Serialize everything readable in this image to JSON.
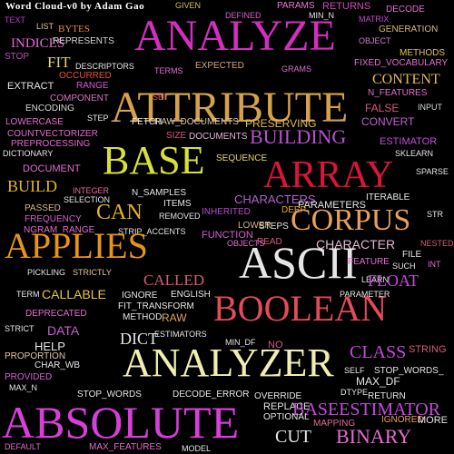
{
  "title": "Word Cloud-v0 by Adam Gao",
  "words": [
    {
      "text": "GIVEN",
      "color": "#d6c44a"
    },
    {
      "text": "DEFINED",
      "color": "#d35fd0"
    },
    {
      "text": "PARAMS",
      "color": "#e67ad6"
    },
    {
      "text": "RETURNS",
      "color": "#d24bb5"
    },
    {
      "text": "MIN_N",
      "color": "#e6e6e6"
    },
    {
      "text": "DECODE",
      "color": "#e66bd2"
    },
    {
      "text": "TEXT",
      "color": "#b93ad0"
    },
    {
      "text": "LIST",
      "color": "#e6c3a3"
    },
    {
      "text": "BYTES",
      "color": "#e28a3a"
    },
    {
      "text": "ANALYZE",
      "color": "#d12fbe"
    },
    {
      "text": "MATRIX",
      "color": "#c44bd8"
    },
    {
      "text": "INDICES",
      "color": "#e46bd2"
    },
    {
      "text": "REPRESENTS",
      "color": "#d8d8d8"
    },
    {
      "text": "GENERATION",
      "color": "#d6b87a"
    },
    {
      "text": "OBJECT",
      "color": "#d27bd2"
    },
    {
      "text": "STOP",
      "color": "#b94fc0"
    },
    {
      "text": "FIT",
      "color": "#e8d46a"
    },
    {
      "text": "DESCRIPTORS",
      "color": "#e6e6e6"
    },
    {
      "text": "TERMS",
      "color": "#e46bd2"
    },
    {
      "text": "EXPECTED",
      "color": "#d6a57a"
    },
    {
      "text": "GRAMS",
      "color": "#d86fd2"
    },
    {
      "text": "METHODS",
      "color": "#e6c34a"
    },
    {
      "text": "OCCURRED",
      "color": "#e84f3a"
    },
    {
      "text": "FIXED_VOCABULARY",
      "color": "#e66bd2"
    },
    {
      "text": "EXTRACT",
      "color": "#e6e6e6"
    },
    {
      "text": "RANGE",
      "color": "#d85ad2"
    },
    {
      "text": "ATTRIBUTE",
      "color": "#d6a14a"
    },
    {
      "text": "CONTENT",
      "color": "#e6b95a"
    },
    {
      "text": "COMPONENT",
      "color": "#d874c8"
    },
    {
      "text": "SET",
      "color": "#e24c7a"
    },
    {
      "text": "N_FEATURES",
      "color": "#e66bd2"
    },
    {
      "text": "ENCODING",
      "color": "#d8d8d8"
    },
    {
      "text": "INPUT",
      "color": "#d8d8d8"
    },
    {
      "text": "FALSE",
      "color": "#d65a7a"
    },
    {
      "text": "LOWERCASE",
      "color": "#e66bd2"
    },
    {
      "text": "STEP",
      "color": "#e6e6e6"
    },
    {
      "text": "FETCH",
      "color": "#e6e6e6"
    },
    {
      "text": "RAW_DOCUMENTS",
      "color": "#d6c3a3"
    },
    {
      "text": "PRESERVING",
      "color": "#e6b95a"
    },
    {
      "text": "CONVERT",
      "color": "#c75fd2"
    },
    {
      "text": "COUNTVECTORIZER",
      "color": "#e66bd2"
    },
    {
      "text": "SIZE",
      "color": "#d65a7a"
    },
    {
      "text": "DOCUMENTS",
      "color": "#e6b6d2"
    },
    {
      "text": "BUILDING",
      "color": "#b94fd2"
    },
    {
      "text": "PREPROCESSING",
      "color": "#e66bd2"
    },
    {
      "text": "ESTIMATOR",
      "color": "#c44bd8"
    },
    {
      "text": "DICTIONARY",
      "color": "#e6e6e6"
    },
    {
      "text": "BASE",
      "color": "#d8e03a"
    },
    {
      "text": "SEQUENCE",
      "color": "#e6d66a"
    },
    {
      "text": "SKLEARN",
      "color": "#e6e6e6"
    },
    {
      "text": "DOCUMENT",
      "color": "#e46bd2"
    },
    {
      "text": "ARRAY",
      "color": "#d8153a"
    },
    {
      "text": "SPARSE",
      "color": "#e6e6e6"
    },
    {
      "text": "BUILD",
      "color": "#e6b42a"
    },
    {
      "text": "INTEGER",
      "color": "#e66b9a"
    },
    {
      "text": "N_SAMPLES",
      "color": "#e6e6e6"
    },
    {
      "text": "SELECTION",
      "color": "#e6e6e6"
    },
    {
      "text": "CHARACTERS",
      "color": "#b65fd2"
    },
    {
      "text": "PASSED",
      "color": "#d6b87a"
    },
    {
      "text": "ITEMS",
      "color": "#e6e6e6"
    },
    {
      "text": "PARAMETERS",
      "color": "#e6e6e6"
    },
    {
      "text": "ITERABLE",
      "color": "#e6e6e6"
    },
    {
      "text": "CAN",
      "color": "#e6b42a"
    },
    {
      "text": "REMOVED",
      "color": "#e6e6e6"
    },
    {
      "text": "INHERITED",
      "color": "#b54ad2"
    },
    {
      "text": "DEEP",
      "color": "#e6a82a"
    },
    {
      "text": "FREQUENCY",
      "color": "#d65fd2"
    },
    {
      "text": "CORPUS",
      "color": "#e6a05a"
    },
    {
      "text": "STR",
      "color": "#e6e6e6"
    },
    {
      "text": "NGRAM_RANGE",
      "color": "#e66bd2"
    },
    {
      "text": "STRIP_ACCENTS",
      "color": "#e6e6e6"
    },
    {
      "text": "LOWER",
      "color": "#d6b87a"
    },
    {
      "text": "STEPS",
      "color": "#e6e6e6"
    },
    {
      "text": "APPLIES",
      "color": "#e6931a"
    },
    {
      "text": "FUNCTION",
      "color": "#d65fd2"
    },
    {
      "text": "OBJECTS",
      "color": "#e66bd2"
    },
    {
      "text": "READ",
      "color": "#d65a7a"
    },
    {
      "text": "CHARACTER",
      "color": "#e6b6d2"
    },
    {
      "text": "NESTED",
      "color": "#d65a7a"
    },
    {
      "text": "ASCII",
      "color": "#e6e6e6"
    },
    {
      "text": "FILE",
      "color": "#e6e6e6"
    },
    {
      "text": "FEATURE",
      "color": "#e66bd2"
    },
    {
      "text": "SUCH",
      "color": "#e6e6e6"
    },
    {
      "text": "INT",
      "color": "#e66bd2"
    },
    {
      "text": "PICKLING",
      "color": "#e6e6e6"
    },
    {
      "text": "STRICTLY",
      "color": "#e6c3a3"
    },
    {
      "text": "CALLED",
      "color": "#d65a7a"
    },
    {
      "text": "LEARN",
      "color": "#e6e6e6"
    },
    {
      "text": "FLOAT",
      "color": "#c44bd8"
    },
    {
      "text": "TERM",
      "color": "#e6e6e6"
    },
    {
      "text": "CALLABLE",
      "color": "#e6c83a"
    },
    {
      "text": "IGNORE",
      "color": "#e6e6e6"
    },
    {
      "text": "ENGLISH",
      "color": "#e6e6e6"
    },
    {
      "text": "BOOLEAN",
      "color": "#e44b5a"
    },
    {
      "text": "PARAMETER",
      "color": "#e6e6e6"
    },
    {
      "text": "FIT_TRANSFORM",
      "color": "#e6e6e6"
    },
    {
      "text": "DEPRECATED",
      "color": "#e66bd2"
    },
    {
      "text": "METHOD",
      "color": "#e6e6e6"
    },
    {
      "text": "RAW",
      "color": "#e6a05a"
    },
    {
      "text": "STRICT",
      "color": "#e6e6e6"
    },
    {
      "text": "DATA",
      "color": "#c75fd2"
    },
    {
      "text": "DICT",
      "color": "#e6e6e6"
    },
    {
      "text": "ESTIMATORS",
      "color": "#e6e6e6"
    },
    {
      "text": "HELP",
      "color": "#e6e6e6"
    },
    {
      "text": "MIN_DF",
      "color": "#e6e6e6"
    },
    {
      "text": "NO",
      "color": "#d65a7a"
    },
    {
      "text": "CLASS",
      "color": "#c44bd8"
    },
    {
      "text": "STRING",
      "color": "#d65a7a"
    },
    {
      "text": "PROPORTION",
      "color": "#e6c3a3"
    },
    {
      "text": "CHAR_WB",
      "color": "#e6e6e6"
    },
    {
      "text": "ANALYZER",
      "color": "#f0eeb0"
    },
    {
      "text": "SELF",
      "color": "#e6e6e6"
    },
    {
      "text": "STOP_WORDS_",
      "color": "#e6e6e6"
    },
    {
      "text": "MAX_DF",
      "color": "#e6e6e6"
    },
    {
      "text": "PROVIDED",
      "color": "#d65fd2"
    },
    {
      "text": "MAX_N",
      "color": "#e6e6e6"
    },
    {
      "text": "STOP_WORDS",
      "color": "#e6e6e6"
    },
    {
      "text": "DECODE_ERROR",
      "color": "#e6e6e6"
    },
    {
      "text": "OVERRIDE",
      "color": "#e6e6e6"
    },
    {
      "text": "DTYPE",
      "color": "#e6e6e6"
    },
    {
      "text": "RETURN",
      "color": "#e6e6e6"
    },
    {
      "text": "REPLACE",
      "color": "#e6e6e6"
    },
    {
      "text": "BASEESTIMATOR",
      "color": "#c44bd8"
    },
    {
      "text": "ABSOLUTE",
      "color": "#d63fd8"
    },
    {
      "text": "OPTIONAL",
      "color": "#e6e6e6"
    },
    {
      "text": "IGNORED",
      "color": "#e6a05a"
    },
    {
      "text": "MORE",
      "color": "#e6e6e6"
    },
    {
      "text": "MAPPING",
      "color": "#e66b9a"
    },
    {
      "text": "CUT",
      "color": "#e6e6e6"
    },
    {
      "text": "BINARY",
      "color": "#e66bd2"
    },
    {
      "text": "DEFAULT",
      "color": "#e66bd2"
    },
    {
      "text": "MAX_FEATURES",
      "color": "#e66bd2"
    },
    {
      "text": "MODEL",
      "color": "#e6e6e6"
    }
  ]
}
